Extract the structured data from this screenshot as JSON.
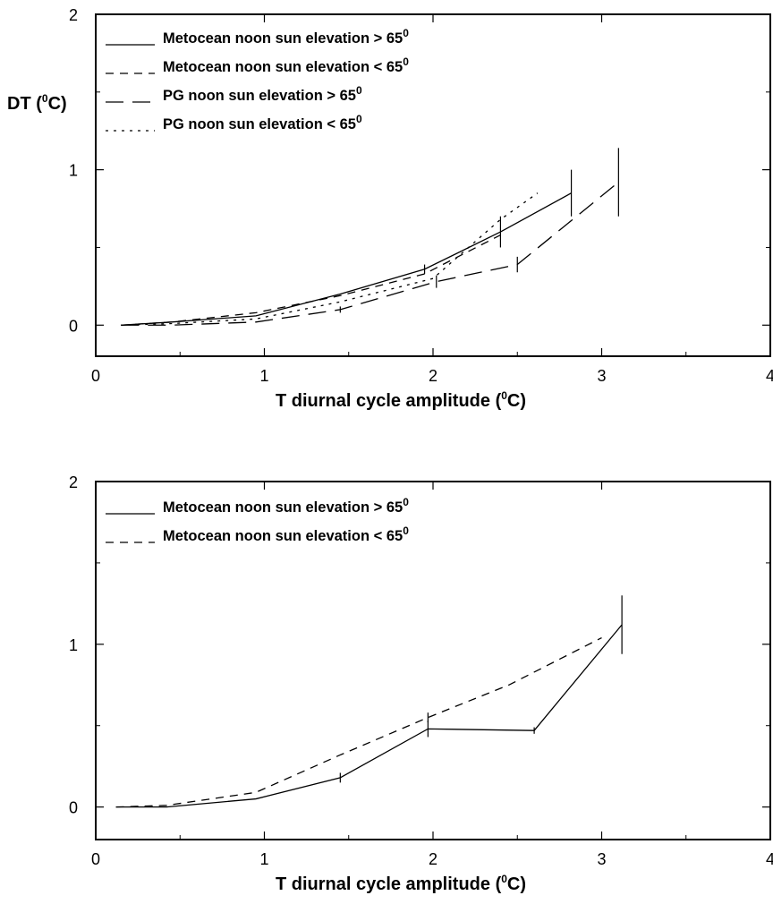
{
  "chart_data": [
    {
      "type": "line",
      "title": "",
      "xlabel": "T diurnal cycle amplitude (",
      "xlabel_sup": "0",
      "xlabel_tail": "C)",
      "ylabel": "DT (",
      "ylabel_sup": "0",
      "ylabel_tail": "C)",
      "xlim": [
        0,
        4
      ],
      "ylim": [
        -0.2,
        2
      ],
      "xticks": [
        0,
        1,
        2,
        3,
        4
      ],
      "xtick_labels": [
        "0",
        "1",
        "2",
        "3",
        "4"
      ],
      "yticks": [
        0,
        1,
        2
      ],
      "ytick_labels": [
        "0",
        "1",
        "2"
      ],
      "grid": false,
      "legend_placement": "top-left",
      "series": [
        {
          "name": "Metocean noon sun elevation > 65",
          "name_sup": "0",
          "style": "solid",
          "x": [
            0.15,
            0.45,
            0.95,
            1.45,
            1.95,
            2.4,
            2.82
          ],
          "y": [
            0.0,
            0.02,
            0.06,
            0.2,
            0.36,
            0.6,
            0.85
          ],
          "err": [
            0,
            0,
            0,
            0,
            0.03,
            0.1,
            0.15
          ]
        },
        {
          "name": "Metocean noon sun elevation < 65",
          "name_sup": "0",
          "style": "dashed",
          "x": [
            0.15,
            0.45,
            0.95,
            1.45,
            1.95,
            2.4
          ],
          "y": [
            0.0,
            0.02,
            0.08,
            0.19,
            0.33,
            0.58
          ],
          "err": [
            0,
            0,
            0,
            0,
            0,
            0
          ]
        },
        {
          "name": "PG noon sun elevation > 65",
          "name_sup": "0",
          "style": "longdash",
          "x": [
            0.15,
            0.45,
            0.95,
            1.45,
            2.02,
            2.5,
            3.1
          ],
          "y": [
            0.0,
            0.0,
            0.02,
            0.1,
            0.28,
            0.39,
            0.92
          ],
          "err": [
            0,
            0,
            0,
            0.02,
            0.04,
            0.05,
            0.22
          ]
        },
        {
          "name": "PG noon sun elevation < 65",
          "name_sup": "0",
          "style": "dotted",
          "x": [
            0.15,
            0.45,
            0.95,
            1.45,
            2.0,
            2.4,
            2.62
          ],
          "y": [
            0.0,
            0.01,
            0.04,
            0.15,
            0.3,
            0.68,
            0.85
          ],
          "err": [
            0,
            0,
            0,
            0,
            0,
            0,
            0
          ]
        }
      ]
    },
    {
      "type": "line",
      "title": "",
      "xlabel": "T diurnal cycle amplitude (",
      "xlabel_sup": "0",
      "xlabel_tail": "C)",
      "ylabel": "",
      "xlim": [
        0,
        4
      ],
      "ylim": [
        -0.2,
        2
      ],
      "xticks": [
        0,
        1,
        2,
        3,
        4
      ],
      "xtick_labels": [
        "0",
        "1",
        "2",
        "3",
        "4"
      ],
      "yticks": [
        0,
        1,
        2
      ],
      "ytick_labels": [
        "0",
        "1",
        "2"
      ],
      "grid": false,
      "legend_placement": "top-left",
      "series": [
        {
          "name": "Metocean noon sun elevation > 65",
          "name_sup": "0",
          "style": "solid",
          "x": [
            0.12,
            0.42,
            0.95,
            1.45,
            1.97,
            2.6,
            3.12
          ],
          "y": [
            0.0,
            0.0,
            0.05,
            0.18,
            0.48,
            0.47,
            1.12
          ],
          "err": [
            0,
            0,
            0,
            0.03,
            0.05,
            0.02,
            0.18
          ]
        },
        {
          "name": "Metocean noon sun elevation < 65",
          "name_sup": "0",
          "style": "dashed",
          "x": [
            0.12,
            0.42,
            0.95,
            1.45,
            1.97,
            2.45,
            3.0
          ],
          "y": [
            0.0,
            0.01,
            0.09,
            0.32,
            0.55,
            0.75,
            1.04
          ],
          "err": [
            0,
            0,
            0,
            0,
            0.03,
            0,
            0
          ]
        }
      ]
    }
  ]
}
